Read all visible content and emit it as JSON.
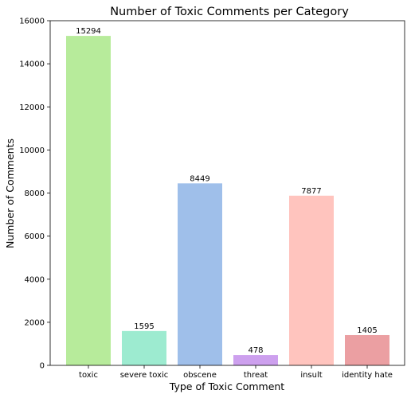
{
  "chart_data": {
    "type": "bar",
    "title": "Number of Toxic Comments per Category",
    "xlabel": "Type of Toxic Comment",
    "ylabel": "Number of Comments",
    "categories": [
      "toxic",
      "severe toxic",
      "obscene",
      "threat",
      "insult",
      "identity hate"
    ],
    "values": [
      15294,
      1595,
      8449,
      478,
      7877,
      1405
    ],
    "data_labels": [
      "15294",
      "1595",
      "8449",
      "478",
      "7877",
      "1405"
    ],
    "ylim": [
      0,
      16000
    ],
    "yticks": [
      0,
      2000,
      4000,
      6000,
      8000,
      10000,
      12000,
      14000,
      16000
    ],
    "grid": false,
    "colors": [
      "#b7eb9b",
      "#9debd0",
      "#9fbfea",
      "#cda0ee",
      "#ffc4be",
      "#eb9fa2"
    ],
    "axis_color": "#000000"
  }
}
